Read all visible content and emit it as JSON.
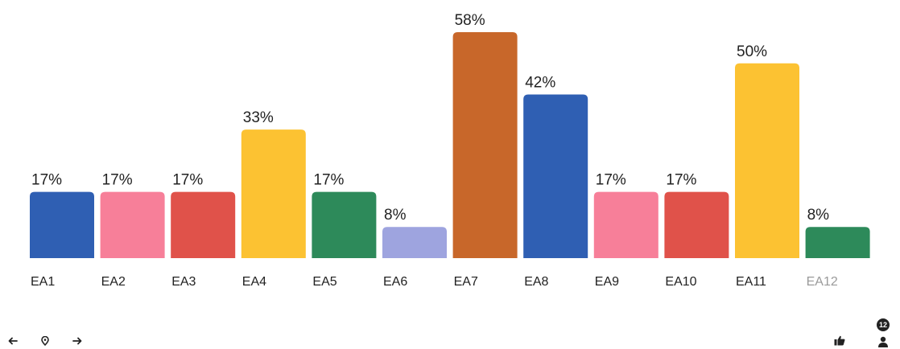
{
  "chart_data": {
    "type": "bar",
    "categories": [
      "EA1",
      "EA2",
      "EA3",
      "EA4",
      "EA5",
      "EA6",
      "EA7",
      "EA8",
      "EA9",
      "EA10",
      "EA11",
      "EA12"
    ],
    "values": [
      17,
      17,
      17,
      33,
      17,
      8,
      58,
      42,
      17,
      17,
      50,
      8
    ],
    "value_labels": [
      "17%",
      "17%",
      "17%",
      "33%",
      "17%",
      "8%",
      "58%",
      "42%",
      "17%",
      "17%",
      "50%",
      "8%"
    ],
    "colors": [
      "#2f5fb3",
      "#f77f99",
      "#e0524a",
      "#fcc232",
      "#2d8a5a",
      "#9ea4df",
      "#c8672a",
      "#2f5fb3",
      "#f77f99",
      "#e0524a",
      "#fcc232",
      "#2d8a5a"
    ],
    "dimmed_categories": [
      "EA12"
    ],
    "ylim": [
      0,
      58
    ],
    "grid": false,
    "title": "",
    "xlabel": "",
    "ylabel": ""
  },
  "controls": {
    "prev_icon": "arrow-left-icon",
    "location_icon": "location-pin-icon",
    "next_icon": "arrow-right-icon",
    "like_icon": "thumbs-up-icon",
    "participant_icon": "person-icon",
    "participant_count": "12"
  }
}
